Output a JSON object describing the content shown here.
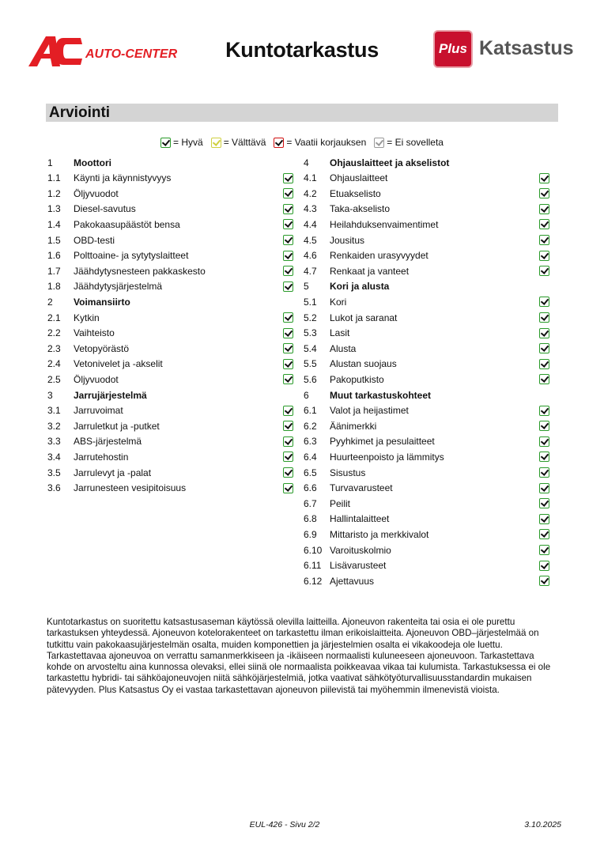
{
  "header": {
    "title": "Kuntotarkastus",
    "logo_left": "AC AUTO-CENTER",
    "logo_right_box": "Plus",
    "logo_right_text": "Katsastus"
  },
  "section": {
    "title": "Arviointi"
  },
  "legend": [
    {
      "label": "= Hyvä",
      "color": "#2a9a2a"
    },
    {
      "label": "= Välttävä",
      "color": "#cfd040"
    },
    {
      "label": "= Vaatii korjauksen",
      "color": "#d01010"
    },
    {
      "label": "= Ei sovelleta",
      "color": "#999999"
    }
  ],
  "left_column": [
    {
      "num": "1",
      "label": "Moottori",
      "heading": true
    },
    {
      "num": "1.1",
      "label": "Käynti ja käynnistyvyys",
      "status": "Hyvä"
    },
    {
      "num": "1.2",
      "label": "Öljyvuodot",
      "status": "Hyvä"
    },
    {
      "num": "1.3",
      "label": "Diesel-savutus",
      "status": "Hyvä"
    },
    {
      "num": "1.4",
      "label": "Pakokaasupäästöt bensa",
      "status": "Hyvä"
    },
    {
      "num": "1.5",
      "label": "OBD-testi",
      "status": "Hyvä"
    },
    {
      "num": "1.6",
      "label": "Polttoaine- ja sytytyslaitteet",
      "status": "Hyvä"
    },
    {
      "num": "1.7",
      "label": "Jäähdytysnesteen pakkaskesto",
      "status": "Hyvä"
    },
    {
      "num": "1.8",
      "label": "Jäähdytysjärjestelmä",
      "status": "Hyvä"
    },
    {
      "num": "2",
      "label": "Voimansiirto",
      "heading": true
    },
    {
      "num": "2.1",
      "label": "Kytkin",
      "status": "Hyvä"
    },
    {
      "num": "2.2",
      "label": "Vaihteisto",
      "status": "Hyvä"
    },
    {
      "num": "2.3",
      "label": "Vetopyörästö",
      "status": "Hyvä"
    },
    {
      "num": "2.4",
      "label": "Vetonivelet ja -akselit",
      "status": "Hyvä"
    },
    {
      "num": "2.5",
      "label": "Öljyvuodot",
      "status": "Hyvä"
    },
    {
      "num": "3",
      "label": "Jarrujärjestelmä",
      "heading": true
    },
    {
      "num": "3.1",
      "label": "Jarruvoimat",
      "status": "Hyvä"
    },
    {
      "num": "3.2",
      "label": "Jarruletkut ja -putket",
      "status": "Hyvä"
    },
    {
      "num": "3.3",
      "label": "ABS-järjestelmä",
      "status": "Hyvä"
    },
    {
      "num": "3.4",
      "label": "Jarrutehostin",
      "status": "Hyvä"
    },
    {
      "num": "3.5",
      "label": "Jarrulevyt ja -palat",
      "status": "Hyvä"
    },
    {
      "num": "3.6",
      "label": "Jarrunesteen vesipitoisuus",
      "status": "Hyvä"
    }
  ],
  "right_column": [
    {
      "num": "4",
      "label": "Ohjauslaitteet ja akselistot",
      "heading": true
    },
    {
      "num": "4.1",
      "label": "Ohjauslaitteet",
      "status": "Hyvä"
    },
    {
      "num": "4.2",
      "label": "Etuakselisto",
      "status": "Hyvä"
    },
    {
      "num": "4.3",
      "label": "Taka-akselisto",
      "status": "Hyvä"
    },
    {
      "num": "4.4",
      "label": "Heilahduksenvaimentimet",
      "status": "Hyvä"
    },
    {
      "num": "4.5",
      "label": "Jousitus",
      "status": "Hyvä"
    },
    {
      "num": "4.6",
      "label": "Renkaiden urasyvyydet",
      "status": "Hyvä"
    },
    {
      "num": "4.7",
      "label": "Renkaat ja vanteet",
      "status": "Hyvä"
    },
    {
      "num": "5",
      "label": "Kori ja alusta",
      "heading": true
    },
    {
      "num": "5.1",
      "label": "Kori",
      "status": "Hyvä"
    },
    {
      "num": "5.2",
      "label": "Lukot ja saranat",
      "status": "Hyvä"
    },
    {
      "num": "5.3",
      "label": "Lasit",
      "status": "Hyvä"
    },
    {
      "num": "5.4",
      "label": "Alusta",
      "status": "Hyvä"
    },
    {
      "num": "5.5",
      "label": "Alustan suojaus",
      "status": "Hyvä"
    },
    {
      "num": "5.6",
      "label": "Pakoputkisto",
      "status": "Hyvä"
    },
    {
      "num": "6",
      "label": "Muut tarkastuskohteet",
      "heading": true
    },
    {
      "num": "6.1",
      "label": "Valot ja heijastimet",
      "status": "Hyvä"
    },
    {
      "num": "6.2",
      "label": "Äänimerkki",
      "status": "Hyvä"
    },
    {
      "num": "6.3",
      "label": "Pyyhkimet ja pesulaitteet",
      "status": "Hyvä"
    },
    {
      "num": "6.4",
      "label": "Huurteenpoisto ja lämmitys",
      "status": "Hyvä"
    },
    {
      "num": "6.5",
      "label": "Sisustus",
      "status": "Hyvä"
    },
    {
      "num": "6.6",
      "label": "Turvavarusteet",
      "status": "Hyvä"
    },
    {
      "num": "6.7",
      "label": "Peilit",
      "status": "Hyvä"
    },
    {
      "num": "6.8",
      "label": "Hallintalaitteet",
      "status": "Hyvä"
    },
    {
      "num": "6.9",
      "label": "Mittaristo ja merkkivalot",
      "status": "Hyvä"
    },
    {
      "num": "6.10",
      "label": "Varoituskolmio",
      "status": "Hyvä"
    },
    {
      "num": "6.11",
      "label": "Lisävarusteet",
      "status": "Hyvä"
    },
    {
      "num": "6.12",
      "label": "Ajettavuus",
      "status": "Hyvä"
    }
  ],
  "disclaimer": "Kuntotarkastus on suoritettu katsastusaseman käytössä olevilla laitteilla. Ajoneuvon rakenteita tai osia ei ole purettu tarkastuksen yhteydessä. Ajoneuvon kotelorakenteet on tarkastettu ilman erikoislaitteita. Ajoneuvon OBD–järjestelmää on tutkittu vain pakokaasujärjestelmän osalta, muiden komponettien ja järjestelmien osalta ei vikakoodeja ole luettu. Tarkastettavaa ajoneuvoa on verrattu samanmerkkiseen ja -ikäiseen normaalisti kuluneeseen ajoneuvoon. Tarkastettava kohde on arvosteltu aina kunnossa olevaksi, ellei siinä ole normaalista poikkeavaa vikaa tai kulumista. Tarkastuksessa ei ole tarkastettu hybridi- tai sähköajoneuvojen niitä sähköjärjestelmiä, jotka vaativat sähkötyöturvallisuusstandardin mukaisen pätevyyden. Plus Katsastus Oy ei vastaa tarkastettavan ajoneuvon piilevistä tai myöhemmin ilmenevistä vioista.",
  "footer": {
    "page": "EUL-426 - Sivu 2/2",
    "date": "3.10.2025"
  }
}
